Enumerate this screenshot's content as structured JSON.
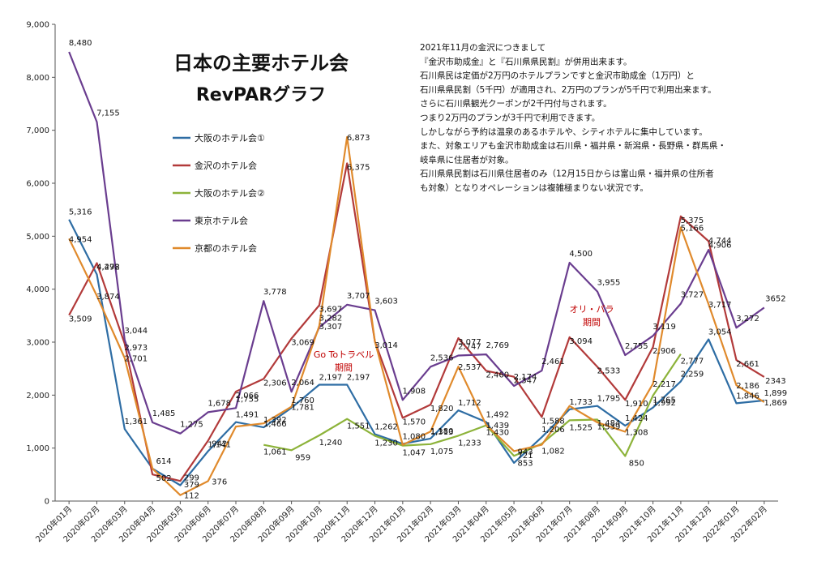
{
  "chart_data": {
    "type": "line",
    "title": "日本の主要ホテル会",
    "subtitle": "RevPARグラフ",
    "xlabel": "",
    "ylabel": "",
    "ylim": [
      0,
      9000
    ],
    "yticks": [
      "0",
      "1,000",
      "2,000",
      "3,000",
      "4,000",
      "5,000",
      "6,000",
      "7,000",
      "8,000",
      "9,000"
    ],
    "grid": false,
    "legend_position": "upper-left",
    "categories": [
      "2020年01月",
      "2020年02月",
      "2020年03月",
      "2020年04月",
      "2020年05月",
      "2020年06月",
      "2020年07月",
      "2020年08月",
      "2020年09月",
      "2020年10月",
      "2020年11月",
      "2020年12月",
      "2021年01月",
      "2021年02月",
      "2021年03月",
      "2021年04月",
      "2021年05月",
      "2021年06月",
      "2021年07月",
      "2021年08月",
      "2021年09月",
      "2021年10月",
      "2021年11月",
      "2021年12月",
      "2022年01月",
      "2022年02月"
    ],
    "series": [
      {
        "name": "大阪のホテル会①",
        "color": "#2e6da4",
        "values": [
          5316,
          4278,
          1361,
          614,
          299,
          942,
          1491,
          1392,
          1760,
          2197,
          2197,
          1262,
          1080,
          1180,
          1712,
          1492,
          721,
          1206,
          1733,
          1795,
          1424,
          1765,
          2259,
          3054,
          1846,
          1899
        ],
        "labels": [
          "5,316",
          "4,278",
          "1,361",
          "614",
          "299",
          "942",
          "1,491",
          "1,392",
          "1,760",
          "2,197",
          "2,197",
          "1,262",
          "1,080",
          "1,180",
          "1,712",
          "1,492",
          "721",
          "1,206",
          "1,733",
          "1,795",
          "1,424",
          "1,765",
          "2,259",
          "3,054",
          "1,846",
          "1,899"
        ]
      },
      {
        "name": "金沢のホテル会",
        "color": "#b23a3a",
        "values": [
          3509,
          4492,
          2973,
          502,
          379,
          1141,
          2066,
          2306,
          3069,
          3697,
          6375,
          3014,
          1570,
          1820,
          3077,
          2460,
          2347,
          1588,
          3094,
          2533,
          1910,
          2906,
          5375,
          4906,
          2661,
          2343
        ],
        "labels": [
          "3,509",
          "4,492",
          "2,973",
          "502",
          "379",
          "1,141",
          "2,066",
          "2,306",
          "3,069",
          "3,697",
          "6,375",
          "3,014",
          "1,570",
          "1,820",
          "3,077",
          "2,460",
          "2,347",
          "1,588",
          "3,094",
          "2,533",
          "1,910",
          "2,906",
          "5,375",
          "4,906",
          "2,661",
          "2343"
        ]
      },
      {
        "name": "大阪のホテル会②",
        "color": "#8db33a",
        "values": [
          null,
          null,
          null,
          null,
          null,
          null,
          null,
          1061,
          959,
          1240,
          1551,
          1230,
          1047,
          1075,
          1233,
          1430,
          853,
          1082,
          1525,
          1539,
          850,
          1992,
          2777,
          null,
          null,
          null
        ],
        "labels": [
          "",
          "",
          "",
          "",
          "",
          "",
          "",
          "1,061",
          "959",
          "1,240",
          "1,551",
          "1,230",
          "1,047",
          "1,075",
          "1,233",
          "1,430",
          "853",
          "1,082",
          "1,525",
          "1,539",
          "850",
          "1,992",
          "2,777",
          "",
          "",
          ""
        ]
      },
      {
        "name": "東京ホテル会",
        "color": "#6a3d8f",
        "values": [
          8480,
          7155,
          3044,
          1485,
          1275,
          1678,
          1755,
          3778,
          2064,
          3282,
          3707,
          3603,
          1908,
          2536,
          2747,
          2769,
          2174,
          2461,
          4500,
          3955,
          2755,
          3119,
          3727,
          4744,
          3272,
          3652
        ],
        "labels": [
          "8,480",
          "7,155",
          "3,044",
          "1,485",
          "1,275",
          "1,678",
          "1,755",
          "3,778",
          "2,064",
          "3,282",
          "3,707",
          "3,603",
          "1,908",
          "2,536",
          "2,747",
          "2,769",
          "2,174",
          "2,461",
          "4,500",
          "3,955",
          "2,755",
          "3,119",
          "3,727",
          "4,744",
          "3,272",
          "3652"
        ]
      },
      {
        "name": "京都のホテル会",
        "color": "#e08a2c",
        "values": [
          4954,
          3874,
          2701,
          614,
          112,
          376,
          1406,
          1466,
          1781,
          3307,
          6873,
          3014,
          1062,
          1313,
          2537,
          1439,
          943,
          1062,
          1795,
          1484,
          1308,
          2217,
          5166,
          3717,
          2186,
          1869
        ],
        "labels": [
          "4,954",
          "3,874",
          "2,701",
          "",
          "112",
          "376",
          "",
          "1,466",
          "1,781",
          "3,307",
          "6,873",
          "",
          "",
          "1,313",
          "2,537",
          "1,439",
          "943",
          "",
          "",
          "1,484",
          "1,308",
          "2,217",
          "5,166",
          "3,717",
          "2,186",
          "1,869"
        ]
      }
    ],
    "annotations": [
      "Go Toトラベル",
      "期間",
      "オリ・パラ",
      "期間"
    ]
  },
  "note": {
    "lines": [
      "2021年11月の金沢につきまして",
      "『金沢市助成金』と『石川県県民割』が併用出来ます。",
      "石川県民は定価が2万円のホテルプランですと金沢市助成金（1万円）と",
      "石川県県民割（5千円）が適用され、2万円のプランが5千円で利用出来ます。",
      "さらに石川県観光クーポンが2千円付与されます。",
      "つまり2万円のプランが3千円で利用できます。",
      "しかしながら予約は温泉のあるホテルや、シティホテルに集中しています。",
      "また、対象エリアも金沢市助成金は石川県・福井県・新潟県・長野県・群馬県・",
      "岐阜県に住居者が対象。",
      "石川県県民割は石川県住居者のみ（12月15日からは富山県・福井県の住所者",
      "も対象）となりオペレーションは複雑極まりない状況です。"
    ]
  }
}
